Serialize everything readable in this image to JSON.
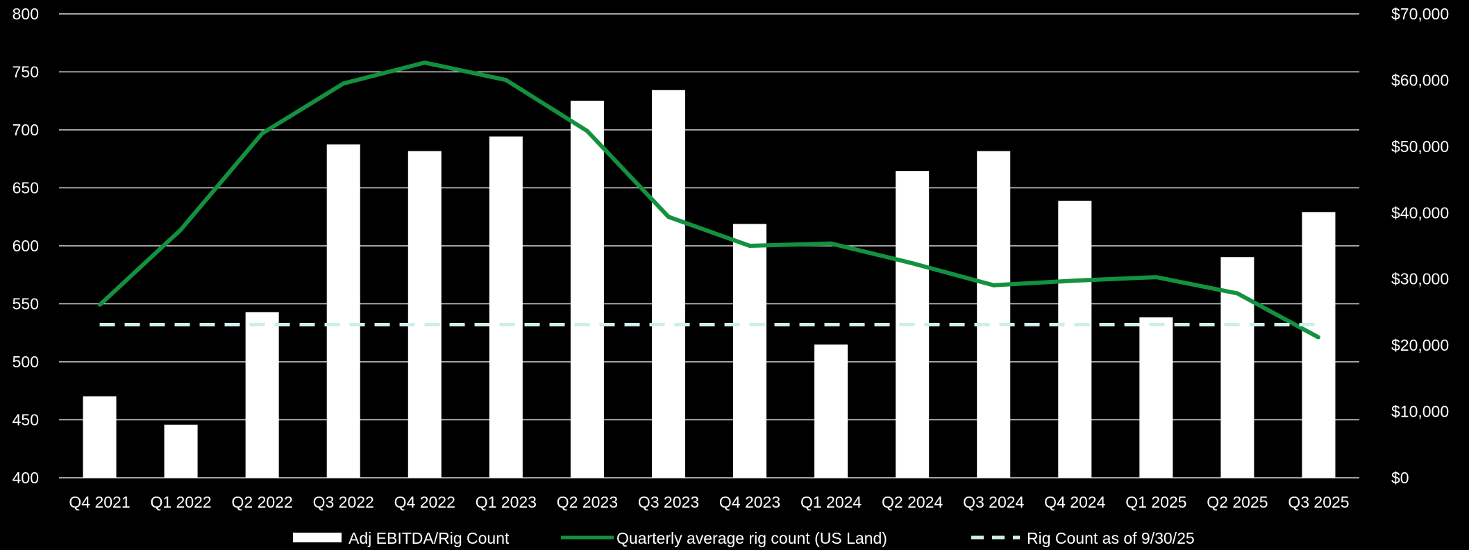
{
  "chart_data": {
    "type": "bar",
    "categories": [
      "Q4 2021",
      "Q1 2022",
      "Q2 2022",
      "Q3 2022",
      "Q4 2022",
      "Q1 2023",
      "Q2 2023",
      "Q3 2023",
      "Q4 2023",
      "Q1 2024",
      "Q2 2024",
      "Q3 2024",
      "Q4 2024",
      "Q1 2025",
      "Q2 2025",
      "Q3 2025"
    ],
    "series": [
      {
        "name": "Adj EBITDA/Rig Count",
        "type": "bar",
        "axis": "right",
        "color": "#ffffff",
        "values": [
          12300,
          8000,
          25000,
          50300,
          49300,
          51500,
          56900,
          58500,
          38300,
          20100,
          46300,
          49300,
          41800,
          24200,
          33300,
          40100
        ]
      },
      {
        "name": "Quarterly average rig count (US Land)",
        "type": "line",
        "axis": "left",
        "color": "#13913f",
        "values": [
          549,
          614,
          697,
          740,
          758,
          743,
          699,
          625,
          600,
          602,
          585,
          566,
          570,
          573,
          559,
          521
        ]
      },
      {
        "name": "Rig Count as of 9/30/25",
        "type": "dashed-line",
        "axis": "left",
        "color": "#cdeeea",
        "values": [
          532,
          532,
          532,
          532,
          532,
          532,
          532,
          532,
          532,
          532,
          532,
          532,
          532,
          532,
          532,
          532
        ]
      }
    ],
    "left_axis": {
      "ylim": [
        400,
        800
      ],
      "ticks": [
        400,
        450,
        500,
        550,
        600,
        650,
        700,
        750,
        800
      ],
      "tick_labels": [
        "400",
        "450",
        "500",
        "550",
        "600",
        "650",
        "700",
        "750",
        "800"
      ]
    },
    "right_axis": {
      "ylim": [
        0,
        70000
      ],
      "ticks": [
        0,
        10000,
        20000,
        30000,
        40000,
        50000,
        60000,
        70000
      ],
      "tick_labels": [
        "$0",
        "$10,000",
        "$20,000",
        "$30,000",
        "$40,000",
        "$50,000",
        "$60,000",
        "$70,000"
      ]
    },
    "grid": true,
    "legend_position": "bottom",
    "background": "#000000"
  }
}
